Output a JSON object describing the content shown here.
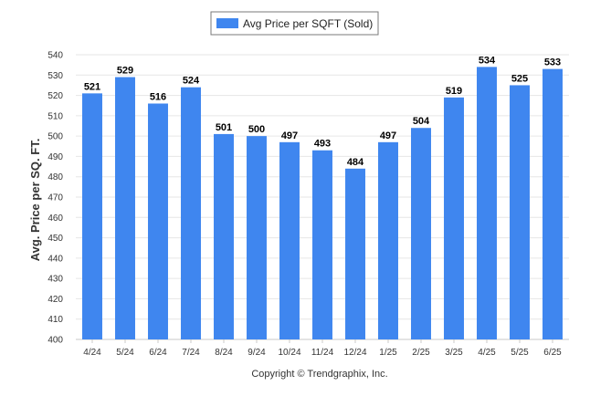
{
  "chart_data": {
    "type": "bar",
    "categories": [
      "4/24",
      "5/24",
      "6/24",
      "7/24",
      "8/24",
      "9/24",
      "10/24",
      "11/24",
      "12/24",
      "1/25",
      "2/25",
      "3/25",
      "4/25",
      "5/25",
      "6/25"
    ],
    "series": [
      {
        "name": "Avg Price per SQFT (Sold)",
        "color": "#3f86ef",
        "values": [
          521,
          529,
          516,
          524,
          501,
          500,
          497,
          493,
          484,
          497,
          504,
          519,
          534,
          525,
          533
        ]
      }
    ],
    "xlabel": "",
    "ylabel": "Avg. Price per SQ. FT.",
    "ylim": [
      400,
      540
    ],
    "yticks": [
      400,
      410,
      420,
      430,
      440,
      450,
      460,
      470,
      480,
      490,
      500,
      510,
      520,
      530,
      540
    ],
    "grid": true,
    "legend_position": "top-center",
    "data_labels": true
  },
  "footer": {
    "copyright": "Copyright © Trendgraphix, Inc."
  }
}
